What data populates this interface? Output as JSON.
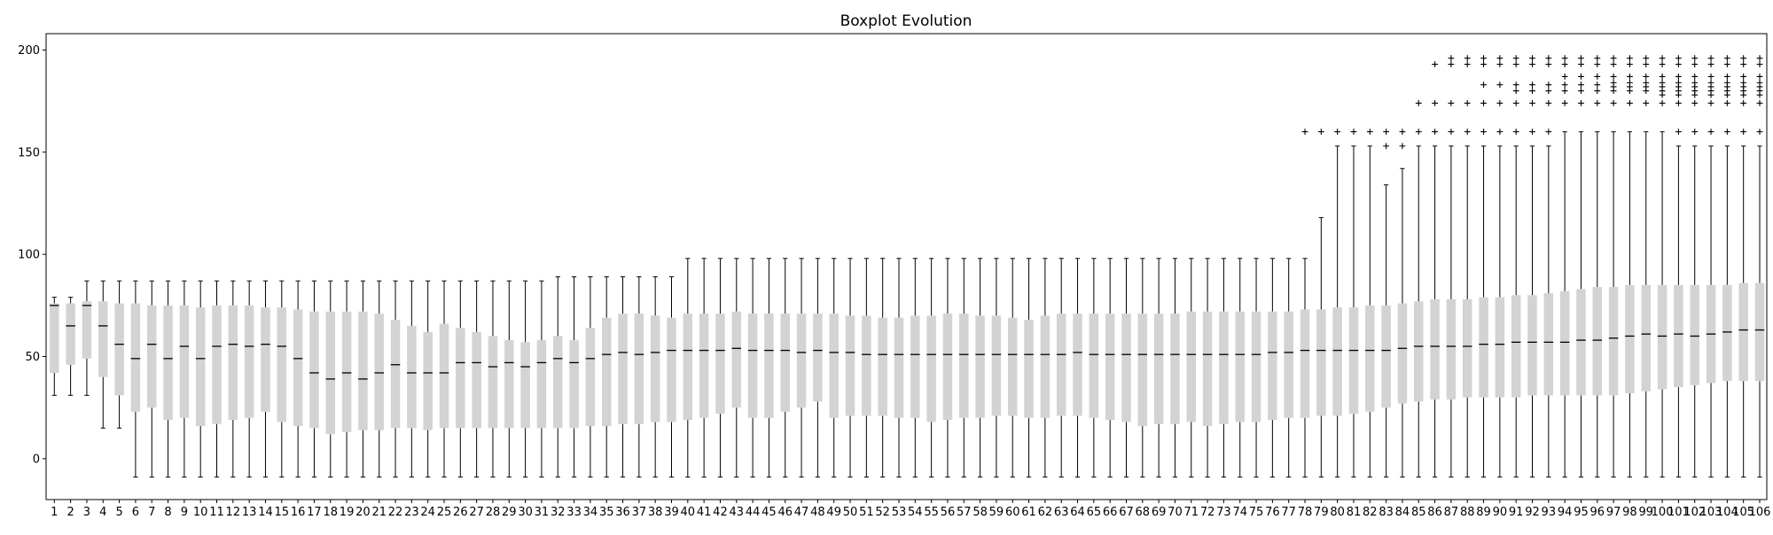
{
  "chart_data": {
    "type": "boxplot",
    "title": "Boxplot Evolution",
    "xlabel": "",
    "ylabel": "",
    "ylim": [
      -20,
      208
    ],
    "yticks": [
      0,
      50,
      100,
      150,
      200
    ],
    "grid": false,
    "legend": "none",
    "colors": {
      "box": "#d3d3d3",
      "median": "#000000",
      "whisker": "#000000",
      "flier": "#000000"
    },
    "categories": [
      "1",
      "2",
      "3",
      "4",
      "5",
      "6",
      "7",
      "8",
      "9",
      "10",
      "11",
      "12",
      "13",
      "14",
      "15",
      "16",
      "17",
      "18",
      "19",
      "20",
      "21",
      "22",
      "23",
      "24",
      "25",
      "26",
      "27",
      "28",
      "29",
      "30",
      "31",
      "32",
      "33",
      "34",
      "35",
      "36",
      "37",
      "38",
      "39",
      "40",
      "41",
      "42",
      "43",
      "44",
      "45",
      "46",
      "47",
      "48",
      "49",
      "50",
      "51",
      "52",
      "53",
      "54",
      "55",
      "56",
      "57",
      "58",
      "59",
      "60",
      "61",
      "62",
      "63",
      "64",
      "65",
      "66",
      "67",
      "68",
      "69",
      "70",
      "71",
      "72",
      "73",
      "74",
      "75",
      "76",
      "77",
      "78",
      "79",
      "80",
      "81",
      "82",
      "83",
      "84",
      "85",
      "86",
      "87",
      "88",
      "89",
      "90",
      "91",
      "92",
      "93",
      "94",
      "95",
      "96",
      "97",
      "98",
      "99",
      "100",
      "101",
      "102",
      "103",
      "104",
      "105",
      "106"
    ],
    "boxes": [
      {
        "whislo": 31,
        "q1": 42,
        "med": 75,
        "q3": 76,
        "whishi": 79,
        "fliers": []
      },
      {
        "whislo": 31,
        "q1": 46,
        "med": 65,
        "q3": 76,
        "whishi": 79,
        "fliers": []
      },
      {
        "whislo": 31,
        "q1": 49,
        "med": 75,
        "q3": 77,
        "whishi": 87,
        "fliers": []
      },
      {
        "whislo": 15,
        "q1": 40,
        "med": 65,
        "q3": 77,
        "whishi": 87,
        "fliers": []
      },
      {
        "whislo": 15,
        "q1": 31,
        "med": 56,
        "q3": 76,
        "whishi": 87,
        "fliers": []
      },
      {
        "whislo": -9,
        "q1": 23,
        "med": 49,
        "q3": 76,
        "whishi": 87,
        "fliers": []
      },
      {
        "whislo": -9,
        "q1": 25,
        "med": 56,
        "q3": 75,
        "whishi": 87,
        "fliers": []
      },
      {
        "whislo": -9,
        "q1": 19,
        "med": 49,
        "q3": 75,
        "whishi": 87,
        "fliers": []
      },
      {
        "whislo": -9,
        "q1": 20,
        "med": 55,
        "q3": 75,
        "whishi": 87,
        "fliers": []
      },
      {
        "whislo": -9,
        "q1": 16,
        "med": 49,
        "q3": 74,
        "whishi": 87,
        "fliers": []
      },
      {
        "whislo": -9,
        "q1": 17,
        "med": 55,
        "q3": 75,
        "whishi": 87,
        "fliers": []
      },
      {
        "whislo": -9,
        "q1": 19,
        "med": 56,
        "q3": 75,
        "whishi": 87,
        "fliers": []
      },
      {
        "whislo": -9,
        "q1": 20,
        "med": 55,
        "q3": 75,
        "whishi": 87,
        "fliers": []
      },
      {
        "whislo": -9,
        "q1": 23,
        "med": 56,
        "q3": 74,
        "whishi": 87,
        "fliers": []
      },
      {
        "whislo": -9,
        "q1": 18,
        "med": 55,
        "q3": 74,
        "whishi": 87,
        "fliers": []
      },
      {
        "whislo": -9,
        "q1": 16,
        "med": 49,
        "q3": 73,
        "whishi": 87,
        "fliers": []
      },
      {
        "whislo": -9,
        "q1": 15,
        "med": 42,
        "q3": 72,
        "whishi": 87,
        "fliers": []
      },
      {
        "whislo": -9,
        "q1": 12,
        "med": 39,
        "q3": 72,
        "whishi": 87,
        "fliers": []
      },
      {
        "whislo": -9,
        "q1": 13,
        "med": 42,
        "q3": 72,
        "whishi": 87,
        "fliers": []
      },
      {
        "whislo": -9,
        "q1": 14,
        "med": 39,
        "q3": 72,
        "whishi": 87,
        "fliers": []
      },
      {
        "whislo": -9,
        "q1": 14,
        "med": 42,
        "q3": 71,
        "whishi": 87,
        "fliers": []
      },
      {
        "whislo": -9,
        "q1": 15,
        "med": 46,
        "q3": 68,
        "whishi": 87,
        "fliers": []
      },
      {
        "whislo": -9,
        "q1": 15,
        "med": 42,
        "q3": 65,
        "whishi": 87,
        "fliers": []
      },
      {
        "whislo": -9,
        "q1": 14,
        "med": 42,
        "q3": 62,
        "whishi": 87,
        "fliers": []
      },
      {
        "whislo": -9,
        "q1": 15,
        "med": 42,
        "q3": 66,
        "whishi": 87,
        "fliers": []
      },
      {
        "whislo": -9,
        "q1": 15,
        "med": 47,
        "q3": 64,
        "whishi": 87,
        "fliers": []
      },
      {
        "whislo": -9,
        "q1": 15,
        "med": 47,
        "q3": 62,
        "whishi": 87,
        "fliers": []
      },
      {
        "whislo": -9,
        "q1": 15,
        "med": 45,
        "q3": 60,
        "whishi": 87,
        "fliers": []
      },
      {
        "whislo": -9,
        "q1": 15,
        "med": 47,
        "q3": 58,
        "whishi": 87,
        "fliers": []
      },
      {
        "whislo": -9,
        "q1": 15,
        "med": 45,
        "q3": 57,
        "whishi": 87,
        "fliers": []
      },
      {
        "whislo": -9,
        "q1": 15,
        "med": 47,
        "q3": 58,
        "whishi": 87,
        "fliers": []
      },
      {
        "whislo": -9,
        "q1": 15,
        "med": 49,
        "q3": 60,
        "whishi": 89,
        "fliers": []
      },
      {
        "whislo": -9,
        "q1": 15,
        "med": 47,
        "q3": 58,
        "whishi": 89,
        "fliers": []
      },
      {
        "whislo": -9,
        "q1": 16,
        "med": 49,
        "q3": 64,
        "whishi": 89,
        "fliers": []
      },
      {
        "whislo": -9,
        "q1": 16,
        "med": 51,
        "q3": 69,
        "whishi": 89,
        "fliers": []
      },
      {
        "whislo": -9,
        "q1": 17,
        "med": 52,
        "q3": 71,
        "whishi": 89,
        "fliers": []
      },
      {
        "whislo": -9,
        "q1": 17,
        "med": 51,
        "q3": 71,
        "whishi": 89,
        "fliers": []
      },
      {
        "whislo": -9,
        "q1": 18,
        "med": 52,
        "q3": 70,
        "whishi": 89,
        "fliers": []
      },
      {
        "whislo": -9,
        "q1": 18,
        "med": 53,
        "q3": 69,
        "whishi": 89,
        "fliers": []
      },
      {
        "whislo": -9,
        "q1": 19,
        "med": 53,
        "q3": 71,
        "whishi": 98,
        "fliers": []
      },
      {
        "whislo": -9,
        "q1": 20,
        "med": 53,
        "q3": 71,
        "whishi": 98,
        "fliers": []
      },
      {
        "whislo": -9,
        "q1": 22,
        "med": 53,
        "q3": 71,
        "whishi": 98,
        "fliers": []
      },
      {
        "whislo": -9,
        "q1": 25,
        "med": 54,
        "q3": 72,
        "whishi": 98,
        "fliers": []
      },
      {
        "whislo": -9,
        "q1": 20,
        "med": 53,
        "q3": 71,
        "whishi": 98,
        "fliers": []
      },
      {
        "whislo": -9,
        "q1": 20,
        "med": 53,
        "q3": 71,
        "whishi": 98,
        "fliers": []
      },
      {
        "whislo": -9,
        "q1": 23,
        "med": 53,
        "q3": 71,
        "whishi": 98,
        "fliers": []
      },
      {
        "whislo": -9,
        "q1": 25,
        "med": 52,
        "q3": 71,
        "whishi": 98,
        "fliers": []
      },
      {
        "whislo": -9,
        "q1": 28,
        "med": 53,
        "q3": 71,
        "whishi": 98,
        "fliers": []
      },
      {
        "whislo": -9,
        "q1": 20,
        "med": 52,
        "q3": 71,
        "whishi": 98,
        "fliers": []
      },
      {
        "whislo": -9,
        "q1": 21,
        "med": 52,
        "q3": 70,
        "whishi": 98,
        "fliers": []
      },
      {
        "whislo": -9,
        "q1": 21,
        "med": 51,
        "q3": 70,
        "whishi": 98,
        "fliers": []
      },
      {
        "whislo": -9,
        "q1": 21,
        "med": 51,
        "q3": 69,
        "whishi": 98,
        "fliers": []
      },
      {
        "whislo": -9,
        "q1": 20,
        "med": 51,
        "q3": 69,
        "whishi": 98,
        "fliers": []
      },
      {
        "whislo": -9,
        "q1": 20,
        "med": 51,
        "q3": 70,
        "whishi": 98,
        "fliers": []
      },
      {
        "whislo": -9,
        "q1": 18,
        "med": 51,
        "q3": 70,
        "whishi": 98,
        "fliers": []
      },
      {
        "whislo": -9,
        "q1": 19,
        "med": 51,
        "q3": 71,
        "whishi": 98,
        "fliers": []
      },
      {
        "whislo": -9,
        "q1": 20,
        "med": 51,
        "q3": 71,
        "whishi": 98,
        "fliers": []
      },
      {
        "whislo": -9,
        "q1": 20,
        "med": 51,
        "q3": 70,
        "whishi": 98,
        "fliers": []
      },
      {
        "whislo": -9,
        "q1": 21,
        "med": 51,
        "q3": 70,
        "whishi": 98,
        "fliers": []
      },
      {
        "whislo": -9,
        "q1": 21,
        "med": 51,
        "q3": 69,
        "whishi": 98,
        "fliers": []
      },
      {
        "whislo": -9,
        "q1": 20,
        "med": 51,
        "q3": 68,
        "whishi": 98,
        "fliers": []
      },
      {
        "whislo": -9,
        "q1": 20,
        "med": 51,
        "q3": 70,
        "whishi": 98,
        "fliers": []
      },
      {
        "whislo": -9,
        "q1": 21,
        "med": 51,
        "q3": 71,
        "whishi": 98,
        "fliers": []
      },
      {
        "whislo": -9,
        "q1": 21,
        "med": 52,
        "q3": 71,
        "whishi": 98,
        "fliers": []
      },
      {
        "whislo": -9,
        "q1": 20,
        "med": 51,
        "q3": 71,
        "whishi": 98,
        "fliers": []
      },
      {
        "whislo": -9,
        "q1": 19,
        "med": 51,
        "q3": 71,
        "whishi": 98,
        "fliers": []
      },
      {
        "whislo": -9,
        "q1": 18,
        "med": 51,
        "q3": 71,
        "whishi": 98,
        "fliers": []
      },
      {
        "whislo": -9,
        "q1": 16,
        "med": 51,
        "q3": 71,
        "whishi": 98,
        "fliers": []
      },
      {
        "whislo": -9,
        "q1": 17,
        "med": 51,
        "q3": 71,
        "whishi": 98,
        "fliers": []
      },
      {
        "whislo": -9,
        "q1": 17,
        "med": 51,
        "q3": 71,
        "whishi": 98,
        "fliers": []
      },
      {
        "whislo": -9,
        "q1": 18,
        "med": 51,
        "q3": 72,
        "whishi": 98,
        "fliers": []
      },
      {
        "whislo": -9,
        "q1": 16,
        "med": 51,
        "q3": 72,
        "whishi": 98,
        "fliers": []
      },
      {
        "whislo": -9,
        "q1": 17,
        "med": 51,
        "q3": 72,
        "whishi": 98,
        "fliers": []
      },
      {
        "whislo": -9,
        "q1": 18,
        "med": 51,
        "q3": 72,
        "whishi": 98,
        "fliers": []
      },
      {
        "whislo": -9,
        "q1": 18,
        "med": 51,
        "q3": 72,
        "whishi": 98,
        "fliers": []
      },
      {
        "whislo": -9,
        "q1": 19,
        "med": 52,
        "q3": 72,
        "whishi": 98,
        "fliers": []
      },
      {
        "whislo": -9,
        "q1": 20,
        "med": 52,
        "q3": 72,
        "whishi": 98,
        "fliers": []
      },
      {
        "whislo": -9,
        "q1": 20,
        "med": 53,
        "q3": 73,
        "whishi": 98,
        "fliers": [
          160
        ]
      },
      {
        "whislo": -9,
        "q1": 21,
        "med": 53,
        "q3": 73,
        "whishi": 118,
        "fliers": [
          160
        ]
      },
      {
        "whislo": -9,
        "q1": 21,
        "med": 53,
        "q3": 74,
        "whishi": 153,
        "fliers": [
          160
        ]
      },
      {
        "whislo": -9,
        "q1": 22,
        "med": 53,
        "q3": 74,
        "whishi": 153,
        "fliers": [
          160
        ]
      },
      {
        "whislo": -9,
        "q1": 23,
        "med": 53,
        "q3": 75,
        "whishi": 153,
        "fliers": [
          160
        ]
      },
      {
        "whislo": -9,
        "q1": 25,
        "med": 53,
        "q3": 75,
        "whishi": 134,
        "fliers": [
          153,
          160
        ]
      },
      {
        "whislo": -9,
        "q1": 27,
        "med": 54,
        "q3": 76,
        "whishi": 142,
        "fliers": [
          153,
          160
        ]
      },
      {
        "whislo": -9,
        "q1": 28,
        "med": 55,
        "q3": 77,
        "whishi": 153,
        "fliers": [
          160,
          174
        ]
      },
      {
        "whislo": -9,
        "q1": 29,
        "med": 55,
        "q3": 78,
        "whishi": 153,
        "fliers": [
          160,
          174,
          193
        ]
      },
      {
        "whislo": -9,
        "q1": 29,
        "med": 55,
        "q3": 78,
        "whishi": 153,
        "fliers": [
          160,
          174,
          193,
          196
        ]
      },
      {
        "whislo": -9,
        "q1": 30,
        "med": 55,
        "q3": 78,
        "whishi": 153,
        "fliers": [
          160,
          174,
          193,
          196
        ]
      },
      {
        "whislo": -9,
        "q1": 30,
        "med": 56,
        "q3": 79,
        "whishi": 153,
        "fliers": [
          160,
          174,
          183,
          193,
          196
        ]
      },
      {
        "whislo": -9,
        "q1": 30,
        "med": 56,
        "q3": 79,
        "whishi": 153,
        "fliers": [
          160,
          174,
          183,
          193,
          196
        ]
      },
      {
        "whislo": -9,
        "q1": 30,
        "med": 57,
        "q3": 80,
        "whishi": 153,
        "fliers": [
          160,
          174,
          180,
          183,
          193,
          196
        ]
      },
      {
        "whislo": -9,
        "q1": 31,
        "med": 57,
        "q3": 80,
        "whishi": 153,
        "fliers": [
          160,
          174,
          180,
          183,
          193,
          196
        ]
      },
      {
        "whislo": -9,
        "q1": 31,
        "med": 57,
        "q3": 81,
        "whishi": 153,
        "fliers": [
          160,
          174,
          180,
          183,
          193,
          196
        ]
      },
      {
        "whislo": -9,
        "q1": 31,
        "med": 57,
        "q3": 82,
        "whishi": 160,
        "fliers": [
          174,
          180,
          183,
          187,
          193,
          196
        ]
      },
      {
        "whislo": -9,
        "q1": 31,
        "med": 58,
        "q3": 83,
        "whishi": 160,
        "fliers": [
          174,
          180,
          183,
          187,
          193,
          196
        ]
      },
      {
        "whislo": -9,
        "q1": 31,
        "med": 58,
        "q3": 84,
        "whishi": 160,
        "fliers": [
          174,
          180,
          183,
          187,
          193,
          196
        ]
      },
      {
        "whislo": -9,
        "q1": 31,
        "med": 59,
        "q3": 84,
        "whishi": 160,
        "fliers": [
          174,
          180,
          182,
          184,
          187,
          193,
          196
        ]
      },
      {
        "whislo": -9,
        "q1": 32,
        "med": 60,
        "q3": 85,
        "whishi": 160,
        "fliers": [
          174,
          180,
          182,
          184,
          187,
          193,
          196
        ]
      },
      {
        "whislo": -9,
        "q1": 33,
        "med": 61,
        "q3": 85,
        "whishi": 160,
        "fliers": [
          174,
          180,
          182,
          184,
          187,
          193,
          196
        ]
      },
      {
        "whislo": -9,
        "q1": 34,
        "med": 60,
        "q3": 85,
        "whishi": 160,
        "fliers": [
          174,
          178,
          180,
          182,
          184,
          187,
          193,
          196
        ]
      },
      {
        "whislo": -9,
        "q1": 35,
        "med": 61,
        "q3": 85,
        "whishi": 153,
        "fliers": [
          160,
          174,
          178,
          180,
          182,
          184,
          187,
          193,
          196
        ]
      },
      {
        "whislo": -9,
        "q1": 36,
        "med": 60,
        "q3": 85,
        "whishi": 153,
        "fliers": [
          160,
          174,
          178,
          180,
          182,
          184,
          187,
          193,
          196
        ]
      },
      {
        "whislo": -9,
        "q1": 37,
        "med": 61,
        "q3": 85,
        "whishi": 153,
        "fliers": [
          160,
          174,
          178,
          180,
          182,
          184,
          187,
          193,
          196
        ]
      },
      {
        "whislo": -9,
        "q1": 38,
        "med": 62,
        "q3": 85,
        "whishi": 153,
        "fliers": [
          160,
          174,
          178,
          180,
          182,
          184,
          187,
          193,
          196
        ]
      },
      {
        "whislo": -9,
        "q1": 38,
        "med": 63,
        "q3": 86,
        "whishi": 153,
        "fliers": [
          160,
          174,
          178,
          180,
          182,
          184,
          187,
          193,
          196
        ]
      },
      {
        "whislo": -9,
        "q1": 38,
        "med": 63,
        "q3": 86,
        "whishi": 153,
        "fliers": [
          160,
          174,
          178,
          180,
          182,
          184,
          187,
          193,
          196
        ]
      }
    ]
  }
}
